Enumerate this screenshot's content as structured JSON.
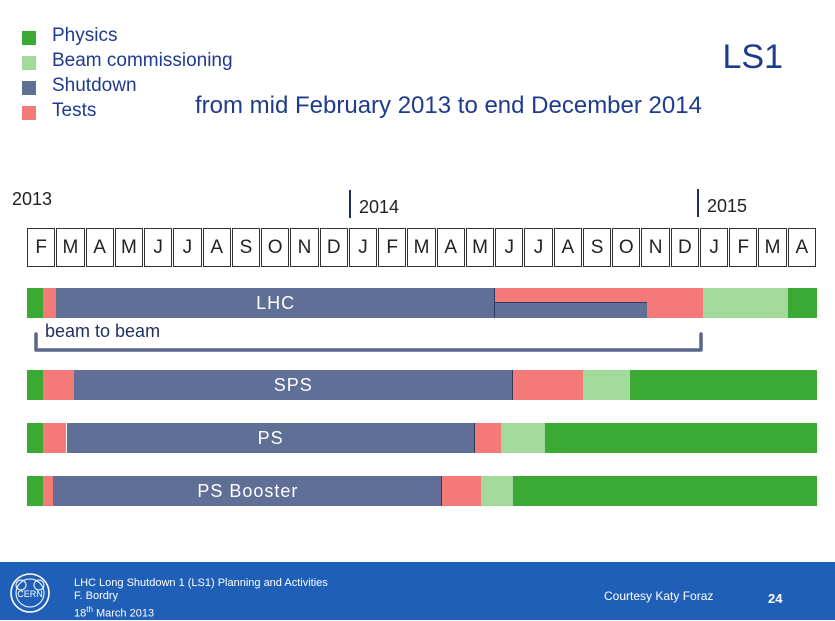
{
  "legend": [
    {
      "label": "Physics",
      "color": "#3aaa35"
    },
    {
      "label": "Beam commissioning",
      "color": "#a3d99a"
    },
    {
      "label": "Shutdown",
      "color": "#5f6f96"
    },
    {
      "label": "Tests",
      "color": "#f47a7a"
    }
  ],
  "title": "LS1",
  "subtitle": "from mid February 2013 to end December 2014",
  "years": [
    "2013",
    "2014",
    "2015"
  ],
  "months": [
    "F",
    "M",
    "A",
    "M",
    "J",
    "J",
    "A",
    "S",
    "O",
    "N",
    "D",
    "J",
    "F",
    "M",
    "A",
    "M",
    "J",
    "J",
    "A",
    "S",
    "O",
    "N",
    "D",
    "J",
    "F",
    "M",
    "A"
  ],
  "annotation": "beam to beam",
  "chart_data": {
    "type": "gantt",
    "time_unit": "month index (0 = Feb 2013, 27 = end of Apr 2015)",
    "rows": [
      {
        "name": "LHC",
        "segments": [
          {
            "phase": "Physics",
            "start": 0,
            "end": 0.55
          },
          {
            "phase": "Tests",
            "start": 0.55,
            "end": 1.0
          },
          {
            "phase": "Shutdown",
            "start": 1.0,
            "end": 16.0
          },
          {
            "phase": "Tests",
            "start": 16.0,
            "end": 21.2,
            "lane": "top"
          },
          {
            "phase": "Shutdown",
            "start": 16.0,
            "end": 21.2,
            "lane": "bottom"
          },
          {
            "phase": "Tests",
            "start": 21.2,
            "end": 23.1
          },
          {
            "phase": "Beam commissioning",
            "start": 23.1,
            "end": 26.0
          },
          {
            "phase": "Physics",
            "start": 26.0,
            "end": 27.0
          }
        ]
      },
      {
        "name": "SPS",
        "segments": [
          {
            "phase": "Physics",
            "start": 0,
            "end": 0.55
          },
          {
            "phase": "Tests",
            "start": 0.55,
            "end": 1.6
          },
          {
            "phase": "Shutdown",
            "start": 1.6,
            "end": 16.6
          },
          {
            "phase": "Tests",
            "start": 16.6,
            "end": 19.0
          },
          {
            "phase": "Beam commissioning",
            "start": 19.0,
            "end": 20.6
          },
          {
            "phase": "Physics",
            "start": 20.6,
            "end": 27.0
          }
        ]
      },
      {
        "name": "PS",
        "segments": [
          {
            "phase": "Physics",
            "start": 0,
            "end": 0.55
          },
          {
            "phase": "Tests",
            "start": 0.55,
            "end": 1.35
          },
          {
            "phase": "Shutdown",
            "start": 1.35,
            "end": 15.3
          },
          {
            "phase": "Tests",
            "start": 15.3,
            "end": 16.2
          },
          {
            "phase": "Beam commissioning",
            "start": 16.2,
            "end": 17.7
          },
          {
            "phase": "Physics",
            "start": 17.7,
            "end": 27.0
          }
        ]
      },
      {
        "name": "PS Booster",
        "segments": [
          {
            "phase": "Physics",
            "start": 0,
            "end": 0.55
          },
          {
            "phase": "Tests",
            "start": 0.55,
            "end": 0.9
          },
          {
            "phase": "Shutdown",
            "start": 0.9,
            "end": 14.2
          },
          {
            "phase": "Tests",
            "start": 14.2,
            "end": 15.5
          },
          {
            "phase": "Beam commissioning",
            "start": 15.5,
            "end": 16.6
          },
          {
            "phase": "Physics",
            "start": 16.6,
            "end": 27.0
          }
        ]
      }
    ]
  },
  "footer": {
    "line1": "LHC Long Shutdown 1 (LS1) Planning and Activities",
    "line2": "F. Bordry",
    "line3_prefix": "18",
    "line3_sup": "th",
    "line3_suffix": " March 2013",
    "courtesy": "Courtesy Katy Foraz",
    "page": "24",
    "logo_text": "CERN"
  }
}
